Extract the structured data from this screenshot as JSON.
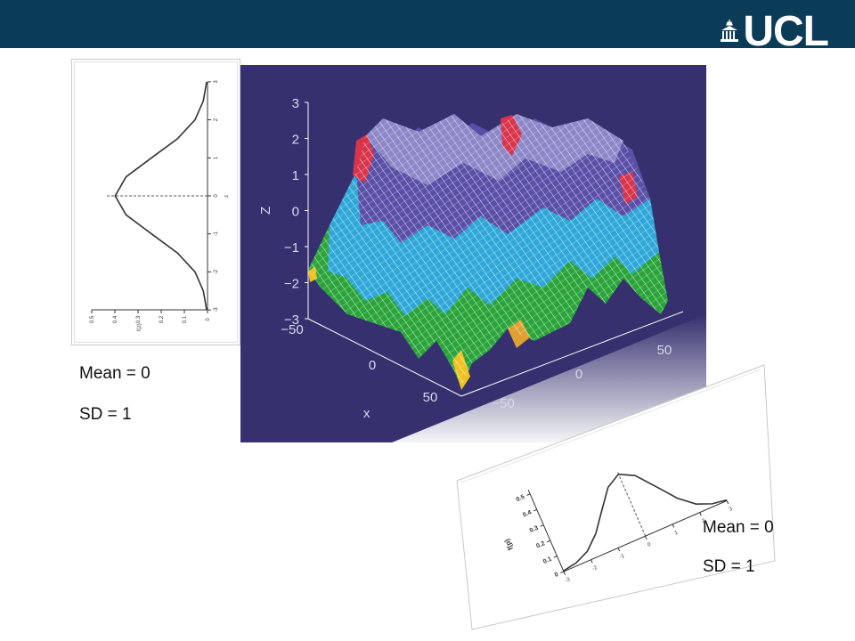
{
  "header": {
    "logo_text": "UCL",
    "logo_icon": "portico-icon",
    "banner_color": "#0a3c58"
  },
  "stats_left": {
    "mean": "Mean = 0",
    "sd": "SD = 1"
  },
  "stats_right": {
    "mean": "Mean = 0",
    "sd": "SD = 1"
  },
  "chart_data": [
    {
      "type": "line",
      "orientation": "rotated",
      "ylabel": "f(z)",
      "xlabel": "z",
      "x_ticks": [
        "-3",
        "-2",
        "-1",
        "0",
        "1",
        "2",
        "3"
      ],
      "y_ticks": [
        "0",
        "0.1",
        "0.2",
        "0.3",
        "0.4",
        "0.5"
      ],
      "mean_line": 0,
      "x": [
        -3,
        -2.5,
        -2,
        -1.5,
        -1,
        -0.5,
        0,
        0.5,
        1,
        1.5,
        2,
        2.5,
        3
      ],
      "y": [
        0.004,
        0.018,
        0.054,
        0.13,
        0.242,
        0.352,
        0.399,
        0.352,
        0.242,
        0.13,
        0.054,
        0.018,
        0.004
      ]
    },
    {
      "type": "surface",
      "zlabel": "Z",
      "xlabel": "x",
      "z_ticks": [
        "3",
        "2",
        "1",
        "0",
        "−1",
        "−2",
        "−3"
      ],
      "x_ticks": [
        "−50",
        "0",
        "50"
      ],
      "y_ticks": [
        "−50",
        "0",
        "50"
      ],
      "background": "#36306e"
    },
    {
      "type": "line",
      "orientation": "skewed",
      "ylabel": "f(p)",
      "x_ticks": [
        "-3",
        "-2",
        "-1",
        "0",
        "1",
        "2",
        "3"
      ],
      "y_ticks": [
        "0",
        "0.1",
        "0.2",
        "0.3",
        "0.4",
        "0.5"
      ],
      "x": [
        -3,
        -2.5,
        -2,
        -1.5,
        -1,
        -0.5,
        0,
        0.5,
        1,
        1.5,
        2,
        2.5,
        3
      ],
      "y": [
        0.004,
        0.018,
        0.054,
        0.13,
        0.242,
        0.352,
        0.399,
        0.352,
        0.242,
        0.13,
        0.054,
        0.018,
        0.004
      ]
    }
  ]
}
